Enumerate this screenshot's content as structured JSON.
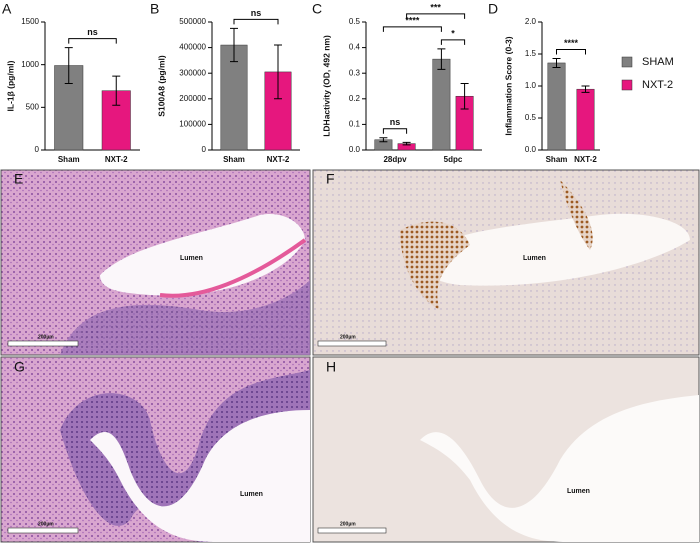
{
  "chart_data": [
    {
      "type": "bar",
      "panel": "A",
      "y_label": "IL-1β (pg/ml)",
      "categories": [
        "Sham",
        "NXT-2"
      ],
      "values": [
        990,
        695
      ],
      "errors": [
        210,
        170
      ],
      "colors": [
        "#808080",
        "#e6177e"
      ],
      "ylim": [
        0,
        1500
      ],
      "yticks": [
        0,
        500,
        1000,
        1500
      ],
      "comparisons": [
        {
          "label": "ns",
          "between": [
            0,
            1
          ]
        }
      ]
    },
    {
      "type": "bar",
      "panel": "B",
      "y_label": "S100A8 (pg/ml)",
      "categories": [
        "Sham",
        "NXT-2"
      ],
      "values": [
        410000,
        305000
      ],
      "errors": [
        65000,
        105000
      ],
      "colors": [
        "#808080",
        "#e6177e"
      ],
      "ylim": [
        0,
        500000
      ],
      "yticks": [
        0,
        100000,
        200000,
        300000,
        400000,
        500000
      ],
      "comparisons": [
        {
          "label": "ns",
          "between": [
            0,
            1
          ]
        }
      ]
    },
    {
      "type": "grouped-bar",
      "panel": "C",
      "y_label": "LDHactivity (OD, 492 nm)",
      "categories": [
        "28dpv",
        "5dpc"
      ],
      "series": [
        {
          "name": "SHAM",
          "color": "#808080",
          "values": [
            0.04,
            0.355
          ],
          "errors": [
            0.008,
            0.04
          ]
        },
        {
          "name": "NXT-2",
          "color": "#e6177e",
          "values": [
            0.025,
            0.21
          ],
          "errors": [
            0.005,
            0.05
          ]
        }
      ],
      "ylim": [
        0,
        0.5
      ],
      "yticks": [
        {
          "value": 0,
          "label": "0.0"
        },
        0.1,
        0.2,
        0.3,
        0.4,
        0.5
      ],
      "comparisons": [
        {
          "label": "ns",
          "between": [
            0,
            1
          ]
        },
        {
          "label": "*",
          "between": [
            2,
            3
          ]
        },
        {
          "label": "****",
          "between": [
            0,
            2
          ]
        },
        {
          "label": "***",
          "between": [
            1,
            3
          ]
        }
      ]
    },
    {
      "type": "bar",
      "panel": "D",
      "y_label": "Inflammation Score (0-3)",
      "categories": [
        "Sham",
        "NXT-2"
      ],
      "values": [
        1.36,
        0.95
      ],
      "errors": [
        0.07,
        0.05
      ],
      "colors": [
        "#808080",
        "#e6177e"
      ],
      "ylim": [
        0,
        2
      ],
      "yticks": [
        {
          "value": 0,
          "label": "0.0"
        },
        0.5,
        {
          "value": 1,
          "label": "1.0"
        },
        1.5,
        {
          "value": 2,
          "label": "2.0"
        }
      ],
      "comparisons": [
        {
          "label": "****",
          "between": [
            0,
            1
          ]
        }
      ]
    }
  ],
  "image_panels": [
    {
      "label": "E",
      "lumen_label": "Lumen",
      "scale_bar_label": "200µm"
    },
    {
      "label": "F",
      "lumen_label": "Lumen",
      "scale_bar_label": "200µm"
    },
    {
      "label": "G",
      "lumen_label": "Lumen",
      "scale_bar_label": "200µm"
    },
    {
      "label": "H",
      "lumen_label": "Lumen",
      "scale_bar_label": "200µm"
    }
  ]
}
